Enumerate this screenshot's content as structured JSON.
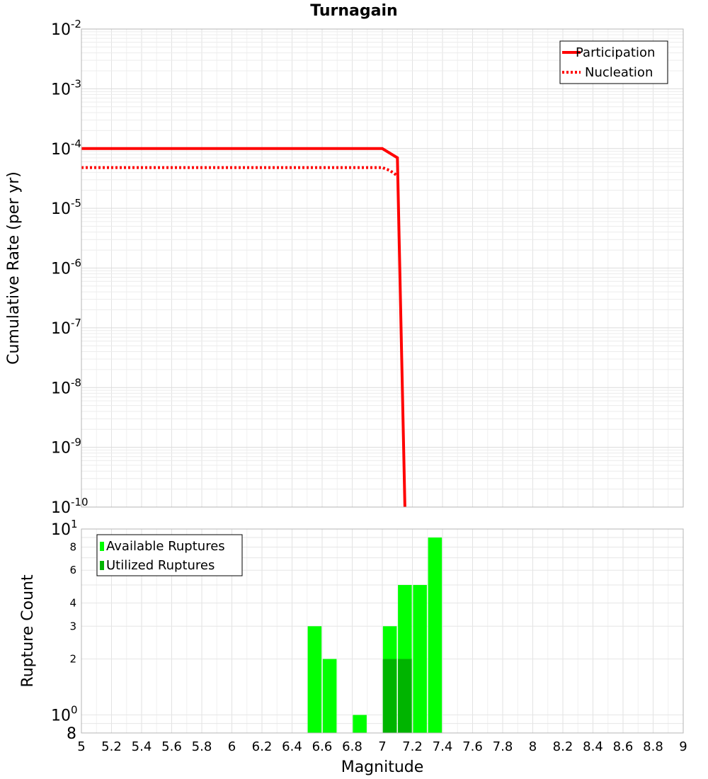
{
  "chart_data": [
    {
      "type": "line",
      "title": "Turnagain",
      "ylabel": "Cumulative Rate (per yr)",
      "xlim": [
        5,
        9
      ],
      "ylim": [
        1e-10,
        0.01
      ],
      "yscale": "log",
      "grid": true,
      "legend_position": "top-right",
      "y_tick_bases": [
        "10",
        "10",
        "10",
        "10",
        "10",
        "10",
        "10",
        "10",
        "10"
      ],
      "y_tick_exponents": [
        "-10",
        "-9",
        "-8",
        "-7",
        "-6",
        "-5",
        "-4",
        "-3",
        "-2"
      ],
      "y_tick_values": [
        1e-10,
        1e-09,
        1e-08,
        1e-07,
        1e-06,
        1e-05,
        0.0001,
        0.001,
        0.01
      ],
      "series": [
        {
          "name": "Participation",
          "color": "#ff0000",
          "style": "solid",
          "x": [
            5.0,
            7.0,
            7.1,
            7.15
          ],
          "y": [
            0.0001,
            0.0001,
            7e-05,
            1e-10
          ]
        },
        {
          "name": "Nucleation",
          "color": "#ff0000",
          "style": "dotted",
          "x": [
            5.0,
            7.0,
            7.05,
            7.1
          ],
          "y": [
            4.8e-05,
            4.8e-05,
            4.3e-05,
            3.5e-05
          ]
        }
      ]
    },
    {
      "type": "bar",
      "xlabel": "Magnitude",
      "ylabel": "Rupture Count",
      "xlim": [
        5,
        9
      ],
      "ylim": [
        0.8,
        10
      ],
      "yscale": "log",
      "grid": true,
      "legend_position": "top-left",
      "x_ticks": [
        "5",
        "5.2",
        "5.4",
        "5.6",
        "5.8",
        "6",
        "6.2",
        "6.4",
        "6.6",
        "6.8",
        "7",
        "7.2",
        "7.4",
        "7.6",
        "7.8",
        "8",
        "8.2",
        "8.4",
        "8.6",
        "8.8",
        "9"
      ],
      "y_ticks": [
        {
          "value": 10,
          "base": "10",
          "exp": "1"
        },
        {
          "value": 8,
          "label": "8"
        },
        {
          "value": 6,
          "label": "6"
        },
        {
          "value": 4,
          "label": "4"
        },
        {
          "value": 3,
          "label": "3"
        },
        {
          "value": 2,
          "label": "2"
        },
        {
          "value": 1,
          "base": "10",
          "exp": "0"
        },
        {
          "value": 0.8,
          "label": "8"
        }
      ],
      "series": [
        {
          "name": "Available Ruptures",
          "color": "#00ff00",
          "x": [
            6.55,
            6.65,
            6.85,
            7.05,
            7.15,
            7.25,
            7.35
          ],
          "values": [
            3,
            2,
            1,
            3,
            5,
            5,
            9
          ]
        },
        {
          "name": "Utilized Ruptures",
          "color": "#00b400",
          "x": [
            7.05,
            7.15
          ],
          "values": [
            2,
            2
          ]
        }
      ]
    }
  ]
}
